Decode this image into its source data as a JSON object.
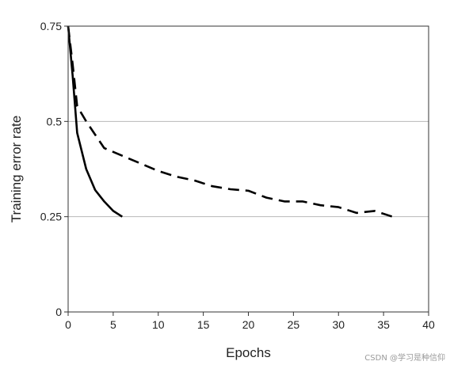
{
  "chart_data": {
    "type": "line",
    "title": "",
    "xlabel": "Epochs",
    "ylabel": "Training error rate",
    "xlim": [
      0,
      40
    ],
    "ylim": [
      0,
      0.75
    ],
    "xticks": [
      0,
      5,
      10,
      15,
      20,
      25,
      30,
      35,
      40
    ],
    "xtick_labels": [
      "0",
      "5",
      "10",
      "15",
      "20",
      "25",
      "30",
      "35",
      "40"
    ],
    "yticks": [
      0,
      0.25,
      0.5,
      0.75
    ],
    "ytick_labels": [
      "0",
      "0.25",
      "0.5",
      "0.75"
    ],
    "grid": "horizontal",
    "legend": "none",
    "series": [
      {
        "style": "solid",
        "color": "#000000",
        "x": [
          0,
          0.5,
          1,
          2,
          3,
          4,
          5,
          6
        ],
        "y": [
          0.75,
          0.62,
          0.47,
          0.375,
          0.32,
          0.29,
          0.265,
          0.25
        ]
      },
      {
        "style": "dashed",
        "color": "#000000",
        "x": [
          0,
          0.5,
          1,
          2,
          4,
          6,
          8,
          10,
          12,
          14,
          16,
          18,
          20,
          22,
          24,
          26,
          28,
          30,
          32,
          34,
          36
        ],
        "y": [
          0.75,
          0.65,
          0.54,
          0.5,
          0.43,
          0.41,
          0.39,
          0.37,
          0.355,
          0.345,
          0.33,
          0.322,
          0.318,
          0.3,
          0.29,
          0.29,
          0.28,
          0.275,
          0.26,
          0.265,
          0.25
        ]
      }
    ]
  },
  "watermark": "CSDN @学习是种信仰"
}
